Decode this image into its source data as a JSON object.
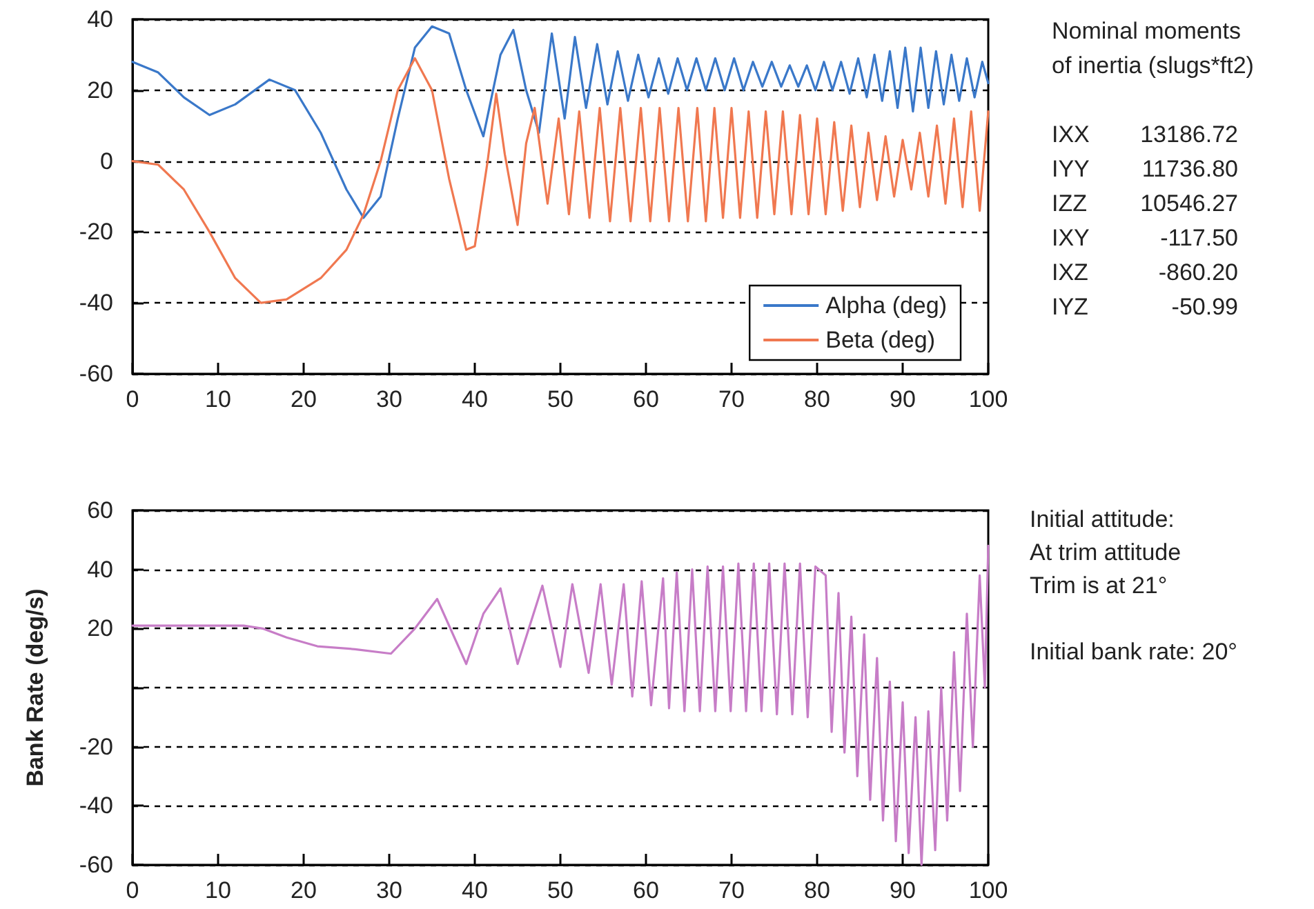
{
  "chart_data": [
    {
      "type": "line",
      "xlim": [
        0,
        100
      ],
      "ylim": [
        -60,
        40
      ],
      "xticks": [
        0,
        10,
        20,
        30,
        40,
        50,
        60,
        70,
        80,
        90,
        100
      ],
      "yticks": [
        -60,
        -40,
        -20,
        0,
        20,
        40
      ],
      "grid": "y",
      "legend": "bottom right",
      "marker": "none",
      "line_style": "solid",
      "annotations": [
        "Nominal moments",
        "of inertia (slugs*ft2)",
        "IXX 13186.72",
        "IYY 11736.80",
        "IZZ 10546.27",
        "IXY -117.50",
        "IXZ -860.20",
        "IYZ -50.99"
      ],
      "series": [
        {
          "name": "Alpha (deg)",
          "color": "#3a78c9",
          "x": [
            0,
            3,
            6,
            9,
            12,
            16,
            19,
            22,
            25,
            27,
            29,
            31,
            33,
            35,
            37,
            39,
            41,
            43,
            44.5,
            46,
            47.5,
            49,
            50.5,
            51.7,
            53,
            54.3,
            55.5,
            56.7,
            57.9,
            59.1,
            60.3,
            61.5,
            62.6,
            63.7,
            64.8,
            65.9,
            67,
            68.1,
            69.2,
            70.3,
            71.4,
            72.5,
            73.6,
            74.7,
            75.8,
            76.8,
            77.8,
            78.8,
            79.8,
            80.8,
            81.8,
            82.8,
            83.8,
            84.8,
            85.8,
            86.7,
            87.6,
            88.5,
            89.4,
            90.3,
            91.2,
            92.1,
            93,
            93.9,
            94.8,
            95.7,
            96.6,
            97.5,
            98.4,
            99.3,
            100
          ],
          "values": [
            28,
            25,
            18,
            13,
            16,
            23,
            20,
            8,
            -8,
            -16,
            -10,
            12,
            32,
            38,
            36,
            20,
            7,
            30,
            37,
            20,
            8,
            36,
            12,
            35,
            15,
            33,
            16,
            31,
            17,
            30,
            18,
            29,
            19,
            29,
            20,
            29,
            20,
            29,
            20,
            29,
            20,
            28,
            21,
            28,
            21,
            27,
            21,
            27,
            20,
            28,
            20,
            28,
            19,
            29,
            18,
            30,
            17,
            31,
            15,
            32,
            14,
            32,
            15,
            31,
            16,
            30,
            17,
            29,
            18,
            28,
            22
          ]
        },
        {
          "name": "Beta (deg)",
          "color": "#f07850",
          "x": [
            0,
            3,
            6,
            9,
            12,
            15,
            18,
            22,
            25,
            27,
            29,
            31,
            33,
            35,
            37,
            39,
            40,
            41.5,
            42.5,
            43.5,
            45,
            46,
            47,
            48.5,
            49.8,
            51,
            52.2,
            53.4,
            54.6,
            55.8,
            57,
            58.2,
            59.4,
            60.5,
            61.6,
            62.7,
            63.8,
            64.9,
            66,
            67,
            68,
            69,
            70,
            71,
            72,
            73,
            74,
            75,
            76,
            77,
            78,
            79,
            80,
            81,
            82,
            83,
            84,
            85,
            86,
            87,
            88,
            89,
            90,
            91,
            92,
            93,
            94,
            95,
            96,
            97,
            98,
            99,
            100
          ],
          "values": [
            0,
            -1,
            -8,
            -20,
            -33,
            -40,
            -39,
            -33,
            -25,
            -15,
            0,
            20,
            29,
            20,
            -5,
            -25,
            -24,
            0,
            19,
            2,
            -18,
            5,
            15,
            -12,
            12,
            -15,
            14,
            -16,
            15,
            -17,
            15,
            -17,
            15,
            -17,
            15,
            -17,
            15,
            -17,
            15,
            -17,
            15,
            -16,
            15,
            -16,
            14,
            -16,
            14,
            -15,
            14,
            -15,
            13,
            -15,
            12,
            -15,
            11,
            -14,
            10,
            -13,
            8,
            -11,
            7,
            -10,
            6,
            -8,
            8,
            -10,
            10,
            -12,
            12,
            -13,
            14,
            -14,
            14
          ]
        }
      ]
    },
    {
      "type": "line",
      "xlim": [
        0,
        100
      ],
      "ylim": [
        -60,
        60
      ],
      "xticks": [
        0,
        10,
        20,
        30,
        40,
        50,
        60,
        70,
        80,
        90,
        100
      ],
      "yticks": [
        -60,
        -40,
        -20,
        {
          "value": 0,
          "label": null
        },
        20,
        40,
        60
      ],
      "grid": "y",
      "legend": false,
      "marker": "none",
      "line_style": "solid",
      "ylabel": "Bank Rate (deg/s)",
      "annotations": [
        "Initial attitude:",
        "At trim attitude",
        "Trim is at 21°",
        "Initial bank rate: 20°"
      ],
      "series": [
        {
          "color": "#c77dc7",
          "x": [
            0,
            5,
            10,
            13,
            15.2,
            18,
            21.6,
            26,
            30.2,
            33,
            35.6,
            39,
            41,
            43,
            45,
            47.9,
            50,
            51.4,
            53.3,
            54.7,
            56,
            57.4,
            58.4,
            59.5,
            60.6,
            62,
            62.7,
            63.6,
            64.5,
            65.4,
            66.3,
            67.2,
            68.1,
            69,
            69.9,
            70.8,
            71.7,
            72.6,
            73.5,
            74.4,
            75.3,
            76.2,
            77.1,
            78,
            78.9,
            79.8,
            81,
            81.7,
            82.5,
            83.2,
            84,
            84.7,
            85.5,
            86.2,
            87,
            87.7,
            88.5,
            89.2,
            90,
            90.7,
            91.5,
            92.2,
            93,
            93.8,
            94.5,
            95.2,
            96,
            96.7,
            97.5,
            98.2,
            99,
            99.6,
            100
          ],
          "values": [
            21,
            21,
            21,
            21,
            20,
            17,
            14,
            13,
            11.5,
            20,
            30,
            8,
            25,
            33.6,
            8,
            34.5,
            7,
            35,
            5,
            35,
            1,
            35,
            -3,
            36,
            -6,
            37,
            -7,
            39,
            -8,
            40,
            -8,
            41,
            -8,
            41,
            -8,
            42,
            -8,
            42,
            -8,
            42,
            -9,
            42,
            -9,
            42,
            -10,
            41,
            38,
            -15,
            32,
            -22,
            24,
            -30,
            18,
            -38,
            10,
            -45,
            2,
            -52,
            -5,
            -56,
            -10,
            -60,
            -8,
            -55,
            0,
            -45,
            12,
            -35,
            25,
            -20,
            38,
            0,
            48
          ]
        }
      ]
    }
  ]
}
